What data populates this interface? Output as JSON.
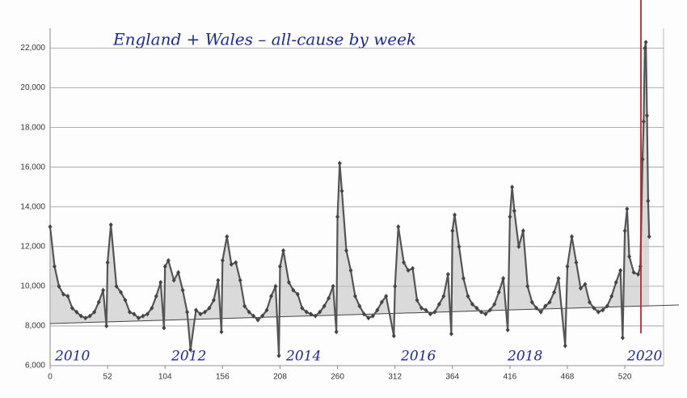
{
  "chart_data": {
    "type": "line",
    "title": "England + Wales – all-cause by week",
    "x": [
      0,
      4,
      8,
      12,
      16,
      20,
      24,
      28,
      32,
      36,
      40,
      44,
      48,
      51,
      52,
      55,
      60,
      64,
      68,
      72,
      76,
      80,
      84,
      88,
      92,
      96,
      100,
      103,
      104,
      107,
      112,
      116,
      120,
      124,
      127,
      132,
      136,
      140,
      144,
      148,
      152,
      155,
      156,
      160,
      164,
      168,
      172,
      176,
      180,
      184,
      188,
      192,
      196,
      200,
      204,
      207,
      208,
      211,
      216,
      220,
      224,
      228,
      232,
      236,
      240,
      244,
      248,
      252,
      256,
      259,
      260,
      262,
      264,
      268,
      272,
      276,
      280,
      284,
      288,
      292,
      296,
      300,
      304,
      311,
      312,
      315,
      320,
      324,
      328,
      332,
      336,
      340,
      344,
      348,
      352,
      356,
      360,
      363,
      364,
      366,
      370,
      374,
      378,
      382,
      386,
      390,
      394,
      398,
      402,
      406,
      410,
      414,
      416,
      418,
      420,
      424,
      428,
      432,
      436,
      440,
      444,
      448,
      452,
      456,
      460,
      466,
      468,
      472,
      476,
      480,
      484,
      488,
      492,
      496,
      500,
      504,
      508,
      512,
      516,
      518,
      520,
      522,
      524,
      528,
      532,
      534,
      536,
      537,
      538,
      539,
      540,
      541,
      542
    ],
    "values": [
      13000,
      11000,
      10000,
      9600,
      9500,
      8900,
      8700,
      8500,
      8400,
      8500,
      8700,
      9200,
      9800,
      8000,
      11200,
      13100,
      10000,
      9700,
      9300,
      8700,
      8600,
      8400,
      8500,
      8600,
      8900,
      9500,
      10200,
      7900,
      11000,
      11300,
      10300,
      10700,
      9800,
      8700,
      6800,
      8800,
      8600,
      8700,
      8900,
      9300,
      10300,
      7700,
      11300,
      12500,
      11100,
      11200,
      10300,
      9000,
      8700,
      8500,
      8300,
      8500,
      8800,
      9500,
      10000,
      6500,
      11000,
      11800,
      10200,
      9800,
      9600,
      8900,
      8700,
      8600,
      8500,
      8700,
      9000,
      9400,
      10000,
      7700,
      13500,
      16200,
      14800,
      11800,
      10800,
      9500,
      9000,
      8600,
      8400,
      8500,
      8800,
      9200,
      9500,
      7500,
      10000,
      13000,
      11200,
      10800,
      10900,
      9300,
      8900,
      8800,
      8600,
      8700,
      9100,
      9500,
      10600,
      7600,
      12800,
      13600,
      12000,
      10400,
      9500,
      9100,
      8900,
      8700,
      8600,
      8800,
      9100,
      9700,
      10400,
      7800,
      13500,
      15000,
      13800,
      12000,
      12800,
      10000,
      9200,
      8900,
      8700,
      9000,
      9200,
      9700,
      10400,
      7000,
      11000,
      12500,
      11200,
      9900,
      10100,
      9200,
      8900,
      8700,
      8800,
      9000,
      9500,
      10200,
      10800,
      7400,
      12800,
      13900,
      11500,
      10700,
      10600,
      11000,
      16400,
      18300,
      22000,
      22300,
      18600,
      14300,
      12500
    ],
    "color": "#555555",
    "xlim": [
      0,
      555
    ],
    "ylim": [
      6000,
      23000
    ],
    "xticks": [
      0,
      52,
      104,
      156,
      208,
      260,
      312,
      364,
      416,
      468,
      520
    ],
    "yticks": [
      {
        "value": 6000,
        "label": "6,000"
      },
      {
        "value": 8000,
        "label": "8,000"
      },
      {
        "value": 10000,
        "label": "10,000"
      },
      {
        "value": 12000,
        "label": "12,000"
      },
      {
        "value": 14000,
        "label": "14,000"
      },
      {
        "value": 16000,
        "label": "16,000"
      },
      {
        "value": 18000,
        "label": "18,000"
      },
      {
        "value": 20000,
        "label": "20,000"
      },
      {
        "value": 22000,
        "label": "22,000"
      }
    ],
    "grid": true,
    "annotations": [
      "2010",
      "2012",
      "2014",
      "2016",
      "2018",
      "2020"
    ]
  }
}
